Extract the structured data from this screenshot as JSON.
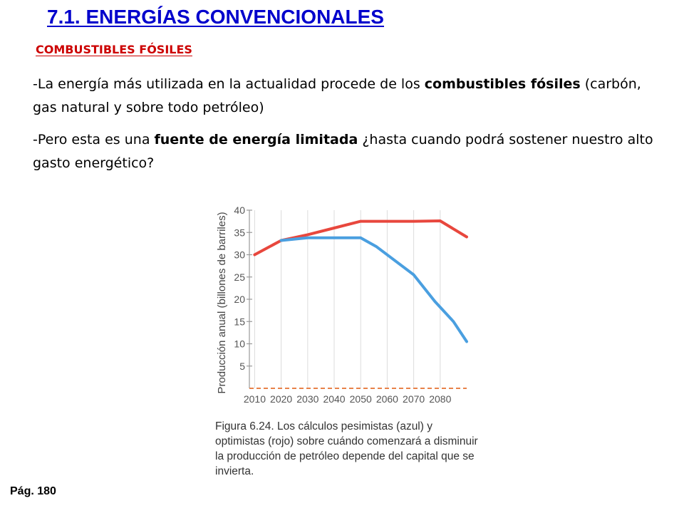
{
  "slide": {
    "title": "7.1. ENERGÍAS CONVENCIONALES",
    "subtitle": "COMBUSTIBLES FÓSILES",
    "p1": {
      "a": "-La energía más utilizada en la actualidad procede de los ",
      "b": "combustibles fósiles",
      "c": " (carbón, gas natural y sobre todo petróleo)"
    },
    "p2": {
      "a": "-Pero esta es una ",
      "b": "fuente de energía limitada",
      "c": " ¿hasta cuando podrá sostener nuestro alto gasto energético?"
    },
    "page": "Pág. 180"
  },
  "chart_data": {
    "type": "line",
    "title": "",
    "xlabel": "",
    "ylabel": "Producción anual (billones de barriles)",
    "x_ticks": [
      "2010",
      "2020",
      "2030",
      "2040",
      "2050",
      "2060",
      "2070",
      "2080"
    ],
    "y_ticks": [
      5,
      10,
      15,
      20,
      25,
      30,
      35,
      40
    ],
    "xlim": [
      2008,
      2090
    ],
    "ylim": [
      0,
      40
    ],
    "series": [
      {
        "color": "#e8473d",
        "points": [
          [
            2010,
            30
          ],
          [
            2020,
            33.2
          ],
          [
            2030,
            34.5
          ],
          [
            2040,
            36
          ],
          [
            2050,
            37.5
          ],
          [
            2060,
            37.5
          ],
          [
            2070,
            37.5
          ],
          [
            2080,
            37.6
          ],
          [
            2090,
            34
          ]
        ]
      },
      {
        "color": "#4a9fe0",
        "points": [
          [
            2020,
            33.2
          ],
          [
            2030,
            33.8
          ],
          [
            2040,
            33.8
          ],
          [
            2050,
            33.8
          ],
          [
            2056,
            31.8
          ],
          [
            2070,
            25.5
          ],
          [
            2078,
            19.5
          ],
          [
            2085,
            15
          ],
          [
            2090,
            10.5
          ]
        ]
      }
    ],
    "caption": {
      "label": "Figura 6.24.",
      "text": "Los cálculos pesimistas (azul) y optimistas (rojo) sobre cuándo comenzará a disminuir la producción de petróleo depende del capital que se invierta."
    }
  }
}
